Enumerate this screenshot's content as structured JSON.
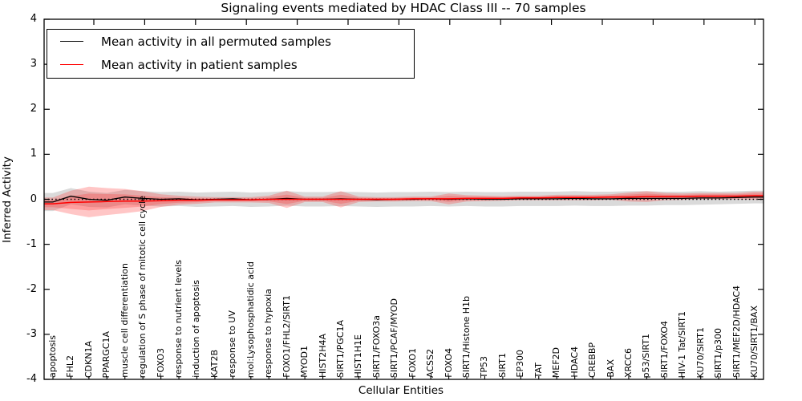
{
  "title": "Signaling events mediated by HDAC Class III -- 70 samples",
  "axes": {
    "y_label": "Inferred Activity",
    "x_label": "Cellular Entities",
    "y_ticks": [
      "4",
      "3",
      "2",
      "1",
      "0",
      "-1",
      "-2",
      "-3",
      "-4"
    ]
  },
  "legend": {
    "items": [
      {
        "label": "Mean activity in all permuted samples",
        "color": "#000000"
      },
      {
        "label": "Mean activity in patient samples",
        "color": "#ff0000"
      }
    ]
  },
  "colors": {
    "permuted_line": "#000000",
    "patient_line": "#ff0000",
    "permuted_band": "rgba(150,150,150,0.35)",
    "patient_band": "rgba(255,50,50,0.28)",
    "zero_line": "#000000"
  },
  "chart_data": {
    "type": "line",
    "title": "Signaling events mediated by HDAC Class III -- 70 samples",
    "xlabel": "Cellular Entities",
    "ylabel": "Inferred Activity",
    "ylim": [
      -4,
      4
    ],
    "grid": false,
    "legend_position": "upper left",
    "zero_reference_line": {
      "value": 0,
      "style": "dotted",
      "color": "#000000"
    },
    "categories": [
      "apoptosis",
      "FHL2",
      "CDKN1A",
      "PPARGC1A",
      "muscle cell differentiation",
      "regulation of S phase of mitotic cell cycle",
      "FOXO3",
      "response to nutrient levels",
      "induction of apoptosis",
      "KAT2B",
      "response to UV",
      "mol:Lysophosphatidic acid",
      "response to hypoxia",
      "FOXO1/FHL2/SIRT1",
      "MYOD1",
      "HIST2H4A",
      "SIRT1/PGC1A",
      "HIST1H1E",
      "SIRT1/FOXO3a",
      "SIRT1/PCAF/MYOD",
      "FOXO1",
      "ACSS2",
      "FOXO4",
      "SIRT1/Histone H1b",
      "TP53",
      "SIRT1",
      "EP300",
      "TAT",
      "MEF2D",
      "HDAC4",
      "CREBBP",
      "BAX",
      "XRCC6",
      "p53/SIRT1",
      "SIRT1/FOXO4",
      "HIV-1 Tat/SIRT1",
      "KU70/SIRT1",
      "SIRT1/p300",
      "SIRT1/MEF2D/HDAC4",
      "KU70/SIRT1/BAX"
    ],
    "series": [
      {
        "name": "Mean activity in all permuted samples",
        "color": "#000000",
        "values": [
          -0.06,
          0.07,
          0.0,
          -0.02,
          0.05,
          0.02,
          0.0,
          0.01,
          -0.01,
          0.0,
          0.01,
          -0.01,
          0.0,
          0.02,
          0.0,
          0.0,
          0.01,
          0.0,
          -0.01,
          0.0,
          0.0,
          0.01,
          0.0,
          0.01,
          0.0,
          0.0,
          0.01,
          0.01,
          0.01,
          0.02,
          0.01,
          0.01,
          0.02,
          0.02,
          0.02,
          0.02,
          0.03,
          0.03,
          0.04,
          0.05
        ],
        "band_halfwidth": [
          0.2,
          0.18,
          0.17,
          0.16,
          0.16,
          0.16,
          0.16,
          0.16,
          0.16,
          0.16,
          0.16,
          0.16,
          0.16,
          0.16,
          0.16,
          0.16,
          0.16,
          0.16,
          0.16,
          0.16,
          0.16,
          0.16,
          0.16,
          0.16,
          0.16,
          0.16,
          0.16,
          0.16,
          0.16,
          0.16,
          0.16,
          0.16,
          0.16,
          0.16,
          0.15,
          0.15,
          0.15,
          0.14,
          0.14,
          0.14
        ]
      },
      {
        "name": "Mean activity in patient samples",
        "color": "#ff0000",
        "values": [
          -0.1,
          -0.07,
          -0.06,
          -0.05,
          -0.04,
          -0.04,
          -0.03,
          -0.02,
          -0.02,
          -0.01,
          -0.01,
          -0.01,
          0.0,
          0.0,
          0.0,
          0.0,
          0.0,
          0.0,
          0.0,
          0.0,
          0.01,
          0.01,
          0.01,
          0.02,
          0.02,
          0.02,
          0.03,
          0.03,
          0.04,
          0.04,
          0.04,
          0.05,
          0.05,
          0.06,
          0.06,
          0.06,
          0.07,
          0.07,
          0.07,
          0.08
        ],
        "band_halfwidth": [
          0.14,
          0.26,
          0.34,
          0.3,
          0.27,
          0.22,
          0.14,
          0.1,
          0.08,
          0.06,
          0.06,
          0.06,
          0.08,
          0.19,
          0.06,
          0.06,
          0.18,
          0.06,
          0.05,
          0.05,
          0.05,
          0.05,
          0.12,
          0.07,
          0.06,
          0.05,
          0.05,
          0.05,
          0.06,
          0.06,
          0.06,
          0.06,
          0.1,
          0.12,
          0.08,
          0.07,
          0.07,
          0.07,
          0.07,
          0.09
        ]
      }
    ]
  }
}
